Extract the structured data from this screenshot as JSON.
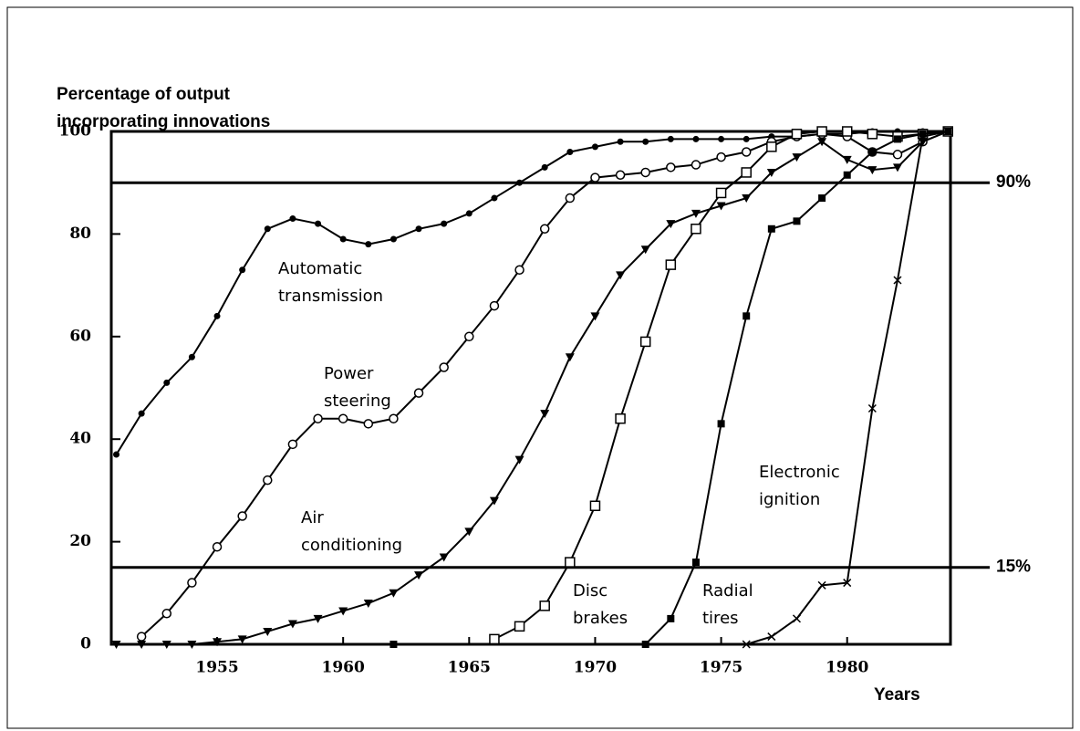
{
  "chart_data": {
    "type": "line",
    "ylabel": [
      "Percentage of output",
      "incorporating innovations"
    ],
    "xlabel": "Years",
    "x": [
      1951,
      1952,
      1953,
      1954,
      1955,
      1956,
      1957,
      1958,
      1959,
      1960,
      1961,
      1962,
      1963,
      1964,
      1965,
      1966,
      1967,
      1968,
      1969,
      1970,
      1971,
      1972,
      1973,
      1974,
      1975,
      1976,
      1977,
      1978,
      1979,
      1980,
      1981,
      1982,
      1983,
      1984
    ],
    "xlim": [
      1950.8,
      1984.1
    ],
    "xticks": [
      1955,
      1960,
      1965,
      1970,
      1975,
      1980
    ],
    "ylim": [
      0,
      100
    ],
    "yticks": [
      0,
      20,
      40,
      60,
      80,
      100
    ],
    "color": "#000000",
    "series": [
      {
        "name": "Automatic transmission",
        "marker": "filled-circle",
        "values": [
          37,
          45,
          51,
          56,
          64,
          73,
          81,
          83,
          82,
          79,
          78,
          79,
          81,
          82,
          84,
          87,
          90,
          93,
          96,
          97,
          98,
          98,
          98.5,
          98.5,
          98.5,
          98.5,
          99,
          99,
          99.5,
          99.5,
          100,
          100,
          100,
          100
        ]
      },
      {
        "name": "Power steering",
        "marker": "open-circle",
        "values": [
          null,
          1.5,
          6,
          12,
          19,
          25,
          32,
          39,
          44,
          44,
          43,
          44,
          49,
          54,
          60,
          66,
          73,
          81,
          87,
          91,
          91.5,
          92,
          93,
          93.5,
          95,
          96,
          98,
          99,
          99.5,
          99,
          96,
          95.5,
          98,
          100
        ]
      },
      {
        "name": "Air conditioning",
        "marker": "triangle",
        "values": [
          0,
          0,
          0,
          0,
          0.5,
          1,
          2.5,
          4,
          5,
          6.5,
          8,
          10,
          13.5,
          17,
          22,
          28,
          36,
          45,
          56,
          64,
          72,
          77,
          82,
          84,
          85.5,
          87,
          92,
          95,
          98,
          94.5,
          92.5,
          93,
          98,
          100
        ]
      },
      {
        "name": "Disc brakes",
        "marker": "open-square",
        "values": [
          null,
          null,
          null,
          null,
          null,
          null,
          null,
          null,
          null,
          null,
          null,
          null,
          null,
          null,
          null,
          1,
          3.5,
          7.5,
          16,
          27,
          44,
          59,
          74,
          81,
          88,
          92,
          97,
          99.5,
          100,
          100,
          99.5,
          99,
          99.5,
          100
        ]
      },
      {
        "name": "Radial tires",
        "marker": "filled-square",
        "values": [
          null,
          null,
          null,
          null,
          null,
          null,
          null,
          null,
          null,
          null,
          null,
          0,
          null,
          null,
          null,
          null,
          null,
          null,
          null,
          null,
          null,
          0,
          5,
          16,
          43,
          64,
          81,
          82.5,
          87,
          91.5,
          96,
          98.5,
          99.5,
          100
        ]
      },
      {
        "name": "Electronic ignition",
        "marker": "cross",
        "values": [
          null,
          null,
          null,
          null,
          null,
          null,
          null,
          null,
          null,
          null,
          null,
          null,
          null,
          null,
          null,
          null,
          null,
          null,
          null,
          null,
          null,
          null,
          null,
          null,
          null,
          0,
          1.5,
          5,
          11.5,
          12,
          46,
          71,
          99,
          100
        ]
      }
    ],
    "reference_lines": [
      {
        "value": 90,
        "label": "90%"
      },
      {
        "value": 15,
        "label": "15%"
      }
    ]
  }
}
